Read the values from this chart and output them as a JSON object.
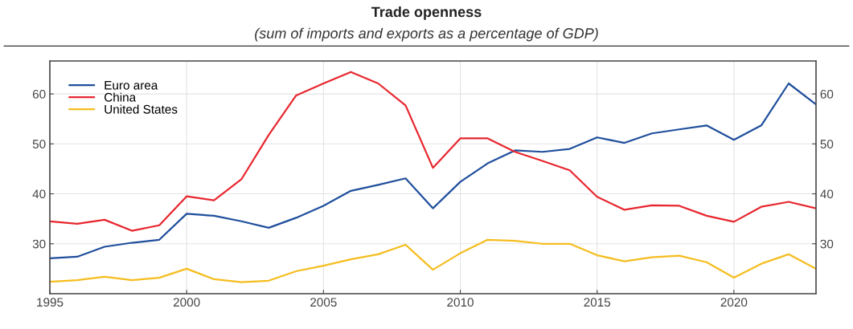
{
  "chart_data": {
    "type": "line",
    "title": "Trade openness",
    "subtitle": "(sum of imports and exports as a percentage of GDP)",
    "x": [
      1995,
      1996,
      1997,
      1998,
      1999,
      2000,
      2001,
      2002,
      2003,
      2004,
      2005,
      2006,
      2007,
      2008,
      2009,
      2010,
      2011,
      2012,
      2013,
      2014,
      2015,
      2016,
      2017,
      2018,
      2019,
      2020,
      2021,
      2022,
      2023
    ],
    "series": [
      {
        "name": "Euro area",
        "color": "#1f4e9c",
        "values": [
          27.1,
          27.4,
          29.4,
          30.2,
          30.8,
          36.0,
          35.6,
          34.5,
          33.2,
          35.2,
          37.6,
          40.6,
          41.8,
          43.1,
          37.1,
          42.4,
          46.1,
          48.7,
          48.4,
          49.0,
          51.3,
          50.2,
          52.1,
          52.9,
          53.7,
          50.8,
          53.7,
          62.1,
          57.9
        ]
      },
      {
        "name": "China",
        "color": "#e8262e",
        "values": [
          34.5,
          34.0,
          34.8,
          32.6,
          33.7,
          39.5,
          38.7,
          42.9,
          51.8,
          59.7,
          62.1,
          64.4,
          62.1,
          57.7,
          45.2,
          51.1,
          51.1,
          48.4,
          46.6,
          44.7,
          39.4,
          36.8,
          37.7,
          37.6,
          35.6,
          34.4,
          37.4,
          38.4,
          37.1
        ]
      },
      {
        "name": "United States",
        "color": "#f5bd1f",
        "values": [
          22.4,
          22.7,
          23.4,
          22.7,
          23.2,
          25.0,
          22.9,
          22.3,
          22.6,
          24.5,
          25.6,
          26.9,
          27.9,
          29.8,
          24.8,
          28.1,
          30.8,
          30.6,
          30.0,
          30.0,
          27.7,
          26.5,
          27.3,
          27.6,
          26.3,
          23.2,
          26.0,
          27.9,
          25.0
        ]
      }
    ],
    "xlim": [
      1995,
      2023
    ],
    "xticks": [
      1995,
      2000,
      2005,
      2010,
      2015,
      2020
    ],
    "ylim": [
      20,
      66.6
    ],
    "yticks": [
      30,
      40,
      50,
      60
    ],
    "y2lim": [
      20,
      66.6
    ],
    "y2ticks": [
      30,
      40,
      50,
      60
    ],
    "grid": true,
    "legend": "top left",
    "marker": "none",
    "line_style": "solid"
  }
}
